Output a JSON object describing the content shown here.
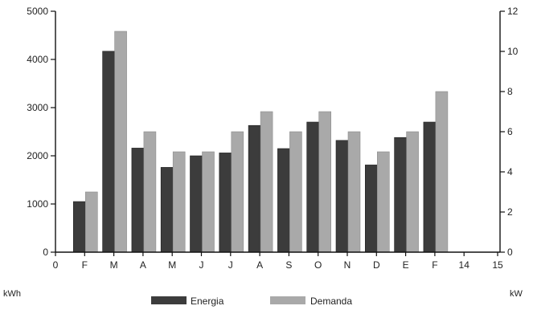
{
  "chart_data": {
    "type": "bar",
    "title": "",
    "categories": [
      "F",
      "M",
      "A",
      "M",
      "J",
      "J",
      "A",
      "S",
      "O",
      "N",
      "D",
      "E",
      "F"
    ],
    "x_ticks": [
      "0",
      "F",
      "M",
      "A",
      "M",
      "J",
      "J",
      "A",
      "S",
      "O",
      "N",
      "D",
      "E",
      "F",
      "14",
      "15"
    ],
    "series": [
      {
        "name": "Energia",
        "axis": "left",
        "color": "#3c3c3c",
        "values": [
          1050,
          4170,
          2160,
          1760,
          2000,
          2060,
          2630,
          2150,
          2700,
          2320,
          1810,
          2380,
          2700
        ]
      },
      {
        "name": "Demanda",
        "axis": "right",
        "color": "#a9a9a9",
        "values": [
          3.0,
          11.0,
          6.0,
          5.0,
          5.0,
          6.0,
          7.0,
          6.0,
          7.0,
          6.0,
          5.0,
          6.0,
          8.0
        ]
      }
    ],
    "y_left": {
      "label": "kWh",
      "min": 0,
      "max": 5000,
      "ticks": [
        "0",
        "1000",
        "2000",
        "3000",
        "4000",
        "5000"
      ]
    },
    "y_right": {
      "label": "kW",
      "min": 0,
      "max": 12,
      "ticks": [
        "0",
        "2",
        "4",
        "6",
        "8",
        "10",
        "12"
      ]
    },
    "legend": {
      "placement": "bottom-center"
    },
    "grid": false
  }
}
